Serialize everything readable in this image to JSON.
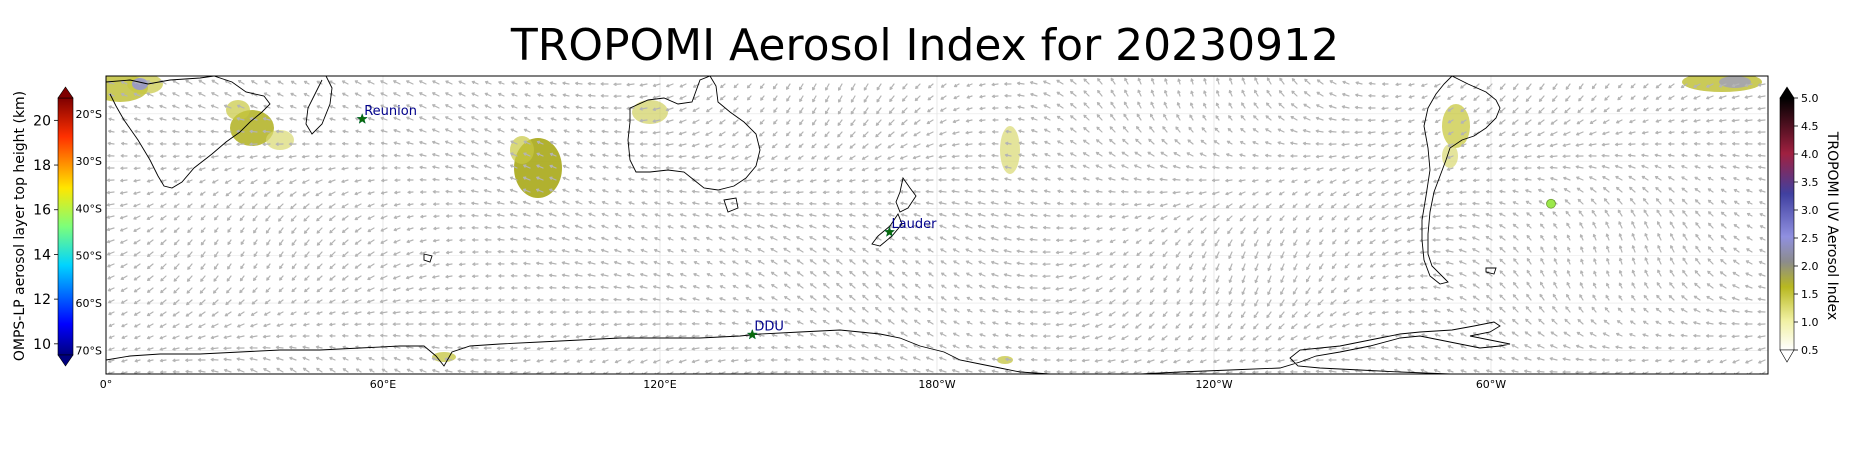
{
  "title": "TROPOMI Aerosol Index for 20230912",
  "map": {
    "lon_ticks": [
      "0°",
      "60°E",
      "120°E",
      "180°W",
      "120°W",
      "60°W"
    ],
    "lat_ticks": [
      "20°S",
      "30°S",
      "40°S",
      "50°S",
      "60°S",
      "70°S"
    ],
    "sites": [
      {
        "name": "Reunion",
        "lon": 55.5,
        "lat": -21.1
      },
      {
        "name": "Lauder",
        "lon": 169.7,
        "lat": -45.0
      },
      {
        "name": "DDU",
        "lon": 140.0,
        "lat": -66.7
      }
    ],
    "omps_point": {
      "lon": -47.0,
      "lat": -39.0,
      "color": "#9be84a"
    }
  },
  "left_colorbar": {
    "label": "OMPS-LP aerosol layer top height (km)",
    "ticks": [
      "10",
      "12",
      "14",
      "16",
      "18",
      "20"
    ],
    "range": [
      9.5,
      21
    ],
    "colormap": "jet"
  },
  "right_colorbar": {
    "label": "TROPOMI UV Aerosol Index",
    "ticks": [
      "0.5",
      "1.0",
      "1.5",
      "2.0",
      "2.5",
      "3.0",
      "3.5",
      "4.0",
      "4.5",
      "5.0"
    ],
    "range": [
      0.5,
      5.0
    ],
    "colors": [
      "#ffffff",
      "#f0f0a0",
      "#b8b820",
      "#8c8c8c",
      "#9090e0",
      "#4040a0",
      "#a02040",
      "#000000"
    ]
  }
}
